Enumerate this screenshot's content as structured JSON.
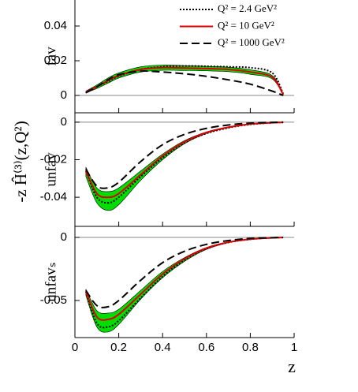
{
  "chart_data": [
    {
      "type": "line",
      "panel_label": "fav",
      "x": [
        0.05,
        0.1,
        0.15,
        0.2,
        0.3,
        0.4,
        0.5,
        0.6,
        0.7,
        0.8,
        0.9,
        0.95
      ],
      "xlim": [
        0,
        1
      ],
      "ylim": [
        -0.01,
        0.055
      ],
      "yticks": [
        0,
        0.02,
        0.04
      ],
      "legend": "upper right",
      "series": [
        {
          "name": "Q² = 2.4 GeV²",
          "color": "#000000",
          "dash": "dotted",
          "values": [
            0.002,
            0.005,
            0.008,
            0.011,
            0.015,
            0.0165,
            0.017,
            0.0168,
            0.0165,
            0.016,
            0.013,
            0.001
          ]
        },
        {
          "name": "Q² = 10 GeV²",
          "color": "#dd0000",
          "dash": "solid",
          "band_color": "#00dd00",
          "values": [
            0.002,
            0.005,
            0.0085,
            0.0115,
            0.015,
            0.016,
            0.0158,
            0.0155,
            0.015,
            0.0135,
            0.0105,
            0.0005
          ],
          "upper": [
            0.0025,
            0.006,
            0.01,
            0.013,
            0.0165,
            0.0175,
            0.0172,
            0.0168,
            0.0163,
            0.0148,
            0.0115,
            0.001
          ],
          "lower": [
            0.0015,
            0.004,
            0.007,
            0.01,
            0.0135,
            0.0145,
            0.0144,
            0.0142,
            0.0137,
            0.0122,
            0.0095,
            0.0002
          ]
        },
        {
          "name": "Q² = 1000 GeV²",
          "color": "#000000",
          "dash": "dashed",
          "values": [
            0.0015,
            0.005,
            0.009,
            0.012,
            0.014,
            0.0135,
            0.0125,
            0.011,
            0.009,
            0.0065,
            0.0025,
            0.0
          ]
        }
      ]
    },
    {
      "type": "line",
      "panel_label": "unfav",
      "ylabel": "-z Ĥ⁽³⁾(z,Q²)",
      "x": [
        0.05,
        0.1,
        0.15,
        0.2,
        0.3,
        0.4,
        0.5,
        0.6,
        0.7,
        0.8,
        0.9,
        0.95
      ],
      "xlim": [
        0,
        1
      ],
      "ylim": [
        -0.0555,
        0.005
      ],
      "yticks": [
        0,
        -0.02,
        -0.04
      ],
      "series": [
        {
          "color": "#000000",
          "dash": "dotted",
          "values": [
            -0.026,
            -0.04,
            -0.043,
            -0.04,
            -0.029,
            -0.019,
            -0.011,
            -0.006,
            -0.003,
            -0.0012,
            -0.0003,
            -0.0001
          ]
        },
        {
          "color": "#dd0000",
          "dash": "solid",
          "band_color": "#00dd00",
          "values": [
            -0.026,
            -0.038,
            -0.04,
            -0.038,
            -0.028,
            -0.018,
            -0.0105,
            -0.0055,
            -0.0027,
            -0.001,
            -0.0003,
            -0.0001
          ],
          "upper": [
            -0.024,
            -0.035,
            -0.037,
            -0.035,
            -0.026,
            -0.017,
            -0.0098,
            -0.0052,
            -0.0025,
            -0.0009,
            -0.0002,
            -0.0001
          ],
          "lower": [
            -0.029,
            -0.043,
            -0.047,
            -0.044,
            -0.031,
            -0.02,
            -0.0115,
            -0.006,
            -0.003,
            -0.0012,
            -0.0004,
            -0.0001
          ]
        },
        {
          "color": "#000000",
          "dash": "dashed",
          "values": [
            -0.025,
            -0.034,
            -0.035,
            -0.032,
            -0.021,
            -0.012,
            -0.0065,
            -0.0033,
            -0.0015,
            -0.0005,
            -0.0001,
            0.0
          ]
        }
      ]
    },
    {
      "type": "line",
      "panel_label": "unfavₛ",
      "xlabel": "z",
      "x": [
        0.05,
        0.1,
        0.15,
        0.2,
        0.3,
        0.4,
        0.5,
        0.6,
        0.7,
        0.8,
        0.9,
        0.95
      ],
      "xlim": [
        0,
        1
      ],
      "ylim": [
        -0.0794,
        0.00875
      ],
      "yticks": [
        0,
        -0.05
      ],
      "xticks": [
        0,
        0.2,
        0.4,
        0.6,
        0.8,
        1
      ],
      "series": [
        {
          "color": "#000000",
          "dash": "dotted",
          "values": [
            -0.043,
            -0.068,
            -0.071,
            -0.066,
            -0.048,
            -0.031,
            -0.018,
            -0.009,
            -0.004,
            -0.0015,
            -0.0003,
            -0.0001
          ]
        },
        {
          "color": "#dd0000",
          "dash": "solid",
          "band_color": "#00dd00",
          "values": [
            -0.043,
            -0.063,
            -0.065,
            -0.061,
            -0.045,
            -0.029,
            -0.017,
            -0.0085,
            -0.0038,
            -0.0014,
            -0.0003,
            -0.0001
          ],
          "upper": [
            -0.041,
            -0.058,
            -0.06,
            -0.057,
            -0.042,
            -0.027,
            -0.016,
            -0.008,
            -0.0035,
            -0.0013,
            -0.0003,
            -0.0001
          ],
          "lower": [
            -0.046,
            -0.071,
            -0.075,
            -0.069,
            -0.049,
            -0.032,
            -0.019,
            -0.0095,
            -0.0042,
            -0.0016,
            -0.0004,
            -0.0001
          ]
        },
        {
          "color": "#000000",
          "dash": "dashed",
          "values": [
            -0.042,
            -0.054,
            -0.055,
            -0.05,
            -0.034,
            -0.02,
            -0.011,
            -0.0055,
            -0.0025,
            -0.0008,
            -0.0002,
            0.0
          ]
        }
      ]
    }
  ]
}
